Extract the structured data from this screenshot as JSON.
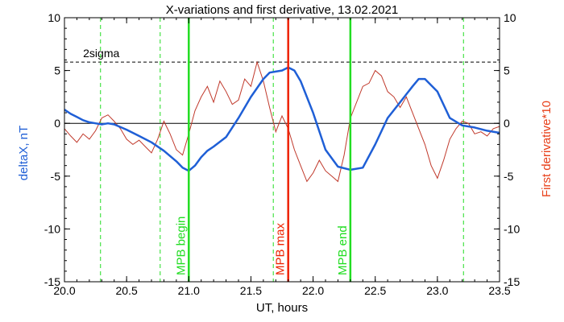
{
  "chart_data": {
    "type": "line",
    "title": "X-variations and first derivative, 13.02.2021",
    "xlabel": "UT, hours",
    "ylabel_left": "deltaX, nT",
    "ylabel_right": "First derivative*10",
    "xlim": [
      20.0,
      23.5
    ],
    "ylim": [
      -15,
      10
    ],
    "x_ticks": [
      "20.0",
      "20.5",
      "21.0",
      "21.5",
      "22.0",
      "22.5",
      "23.0",
      "23.5"
    ],
    "y_ticks_left": [
      "-15",
      "-10",
      "-5",
      "0",
      "5",
      "10"
    ],
    "y_ticks_right": [
      "-15",
      "-10",
      "-5",
      "0",
      "5",
      "10"
    ],
    "colors": {
      "deltaX": "#1f5fd6",
      "derivative": "#c0392b",
      "mpb_begin": "#22dd22",
      "mpb_max": "#ee2200",
      "mpb_end": "#22dd22",
      "dashed_green": "#22dd22",
      "sigma": "#000000",
      "zero": "#000000"
    },
    "sigma_line": {
      "label": "2sigma",
      "y": 5.8
    },
    "dashed_verticals": [
      20.29,
      20.77,
      21.68,
      23.21
    ],
    "event_lines": [
      {
        "label": "MPB begin",
        "x": 21.0,
        "color": "#22dd22"
      },
      {
        "label": "MPB max",
        "x": 21.8,
        "color": "#ee2200"
      },
      {
        "label": "MPB end",
        "x": 22.3,
        "color": "#22dd22"
      }
    ],
    "series": [
      {
        "name": "deltaX",
        "axis": "left",
        "x": [
          20.0,
          20.05,
          20.1,
          20.15,
          20.2,
          20.25,
          20.3,
          20.35,
          20.4,
          20.5,
          20.6,
          20.7,
          20.8,
          20.9,
          20.95,
          21.0,
          21.05,
          21.1,
          21.15,
          21.2,
          21.3,
          21.4,
          21.5,
          21.6,
          21.65,
          21.7,
          21.75,
          21.8,
          21.85,
          21.9,
          22.0,
          22.1,
          22.2,
          22.3,
          22.4,
          22.5,
          22.6,
          22.7,
          22.8,
          22.85,
          22.9,
          23.0,
          23.1,
          23.2,
          23.3,
          23.4,
          23.5
        ],
        "y": [
          1.3,
          0.9,
          0.6,
          0.3,
          0.1,
          0.0,
          -0.1,
          0.0,
          -0.1,
          -0.6,
          -1.2,
          -1.8,
          -2.6,
          -3.6,
          -4.2,
          -4.5,
          -4.0,
          -3.2,
          -2.6,
          -2.2,
          -1.3,
          0.5,
          2.5,
          4.2,
          4.8,
          4.9,
          5.0,
          5.3,
          5.0,
          4.0,
          1.0,
          -2.5,
          -4.1,
          -4.4,
          -4.2,
          -2.0,
          0.5,
          2.0,
          3.5,
          4.2,
          4.2,
          3.0,
          0.5,
          -0.2,
          -0.4,
          -0.7,
          -0.9
        ]
      },
      {
        "name": "derivative",
        "axis": "right",
        "x": [
          20.0,
          20.05,
          20.1,
          20.15,
          20.2,
          20.25,
          20.3,
          20.35,
          20.4,
          20.45,
          20.5,
          20.55,
          20.6,
          20.65,
          20.7,
          20.75,
          20.8,
          20.85,
          20.9,
          20.95,
          21.0,
          21.05,
          21.1,
          21.15,
          21.2,
          21.25,
          21.3,
          21.35,
          21.4,
          21.45,
          21.5,
          21.55,
          21.6,
          21.65,
          21.7,
          21.75,
          21.8,
          21.85,
          21.9,
          21.95,
          22.0,
          22.05,
          22.1,
          22.15,
          22.2,
          22.25,
          22.3,
          22.35,
          22.4,
          22.45,
          22.5,
          22.55,
          22.6,
          22.65,
          22.7,
          22.75,
          22.8,
          22.85,
          22.9,
          22.95,
          23.0,
          23.05,
          23.1,
          23.15,
          23.2,
          23.25,
          23.3,
          23.35,
          23.4,
          23.45,
          23.5
        ],
        "y": [
          -0.5,
          -1.2,
          -1.8,
          -1.0,
          -1.5,
          -0.7,
          0.5,
          0.8,
          0.2,
          -0.5,
          -1.5,
          -2.0,
          -1.6,
          -2.2,
          -2.8,
          -1.5,
          0.2,
          -1.0,
          -2.5,
          -3.0,
          -1.0,
          1.2,
          2.5,
          3.5,
          2.0,
          4.0,
          3.0,
          1.8,
          2.2,
          4.2,
          3.5,
          5.8,
          4.0,
          1.5,
          -0.8,
          0.7,
          -0.5,
          -2.5,
          -4.0,
          -5.5,
          -4.7,
          -3.5,
          -4.5,
          -5.0,
          -5.5,
          -3.0,
          0.5,
          2.0,
          3.5,
          3.8,
          5.0,
          4.5,
          3.0,
          2.5,
          1.5,
          2.5,
          1.0,
          -0.5,
          -2.0,
          -4.0,
          -5.2,
          -3.5,
          -1.5,
          -0.5,
          0.2,
          0.0,
          -1.0,
          -0.8,
          -1.2,
          -0.5,
          -0.3
        ]
      }
    ]
  }
}
